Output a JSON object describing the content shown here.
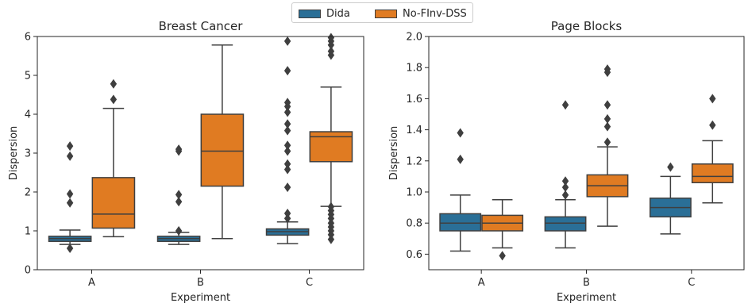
{
  "legend": {
    "items": [
      {
        "label": "Dida",
        "color": "#2a6f97"
      },
      {
        "label": "No-FInv-DSS",
        "color": "#e07b22"
      }
    ]
  },
  "chart_data": [
    {
      "type": "box",
      "title": "Breast Cancer",
      "xlabel": "Experiment",
      "ylabel": "Dispersion",
      "ylim": [
        0,
        6
      ],
      "yticks": [
        "0",
        "1",
        "2",
        "3",
        "4",
        "5",
        "6"
      ],
      "categories": [
        "A",
        "B",
        "C"
      ],
      "series": [
        {
          "name": "Dida",
          "color": "#2a6f97",
          "boxes": [
            {
              "whislo": 0.65,
              "q1": 0.73,
              "med": 0.8,
              "q3": 0.86,
              "whishi": 1.02,
              "fliers": [
                0.55,
                1.72,
                1.95,
                2.92,
                3.18
              ]
            },
            {
              "whislo": 0.65,
              "q1": 0.73,
              "med": 0.8,
              "q3": 0.86,
              "whishi": 0.96,
              "fliers": [
                1.0,
                1.75,
                1.93,
                3.05,
                3.1
              ]
            },
            {
              "whislo": 0.67,
              "q1": 0.89,
              "med": 0.98,
              "q3": 1.05,
              "whishi": 1.23,
              "fliers": [
                1.32,
                1.45,
                2.12,
                2.58,
                2.72,
                3.05,
                3.2,
                3.58,
                3.75,
                4.05,
                4.2,
                4.3,
                5.12,
                5.88
              ]
            }
          ]
        },
        {
          "name": "No-FInv-DSS",
          "color": "#e07b22",
          "boxes": [
            {
              "whislo": 0.85,
              "q1": 1.07,
              "med": 1.43,
              "q3": 2.37,
              "whishi": 4.15,
              "fliers": [
                4.38,
                4.78
              ]
            },
            {
              "whislo": 0.8,
              "q1": 2.15,
              "med": 3.05,
              "q3": 4.0,
              "whishi": 5.78,
              "fliers": []
            },
            {
              "whislo": 1.63,
              "q1": 2.78,
              "med": 3.42,
              "q3": 3.55,
              "whishi": 4.7,
              "fliers": [
                0.78,
                0.9,
                1.0,
                1.1,
                1.2,
                1.32,
                1.42,
                1.52,
                1.62,
                5.52,
                5.62,
                5.78,
                5.88,
                5.97
              ]
            }
          ]
        }
      ]
    },
    {
      "type": "box",
      "title": "Page Blocks",
      "xlabel": "Experiment",
      "ylabel": "Dispersion",
      "ylim": [
        0.5,
        2.0
      ],
      "yticks": [
        "0.6",
        "0.8",
        "1.0",
        "1.2",
        "1.4",
        "1.6",
        "1.8",
        "2.0"
      ],
      "categories": [
        "A",
        "B",
        "C"
      ],
      "series": [
        {
          "name": "Dida",
          "color": "#2a6f97",
          "boxes": [
            {
              "whislo": 0.62,
              "q1": 0.75,
              "med": 0.8,
              "q3": 0.86,
              "whishi": 0.98,
              "fliers": [
                1.21,
                1.38
              ]
            },
            {
              "whislo": 0.64,
              "q1": 0.75,
              "med": 0.8,
              "q3": 0.84,
              "whishi": 0.95,
              "fliers": [
                0.98,
                1.03,
                1.07,
                1.56
              ]
            },
            {
              "whislo": 0.73,
              "q1": 0.84,
              "med": 0.9,
              "q3": 0.96,
              "whishi": 1.1,
              "fliers": [
                1.16
              ]
            }
          ]
        },
        {
          "name": "No-FInv-DSS",
          "color": "#e07b22",
          "boxes": [
            {
              "whislo": 0.64,
              "q1": 0.75,
              "med": 0.8,
              "q3": 0.85,
              "whishi": 0.95,
              "fliers": [
                0.59
              ]
            },
            {
              "whislo": 0.78,
              "q1": 0.97,
              "med": 1.04,
              "q3": 1.11,
              "whishi": 1.29,
              "fliers": [
                1.32,
                1.42,
                1.47,
                1.56,
                1.77,
                1.79
              ]
            },
            {
              "whislo": 0.93,
              "q1": 1.06,
              "med": 1.1,
              "q3": 1.18,
              "whishi": 1.33,
              "fliers": [
                1.43,
                1.6
              ]
            }
          ]
        }
      ]
    }
  ]
}
